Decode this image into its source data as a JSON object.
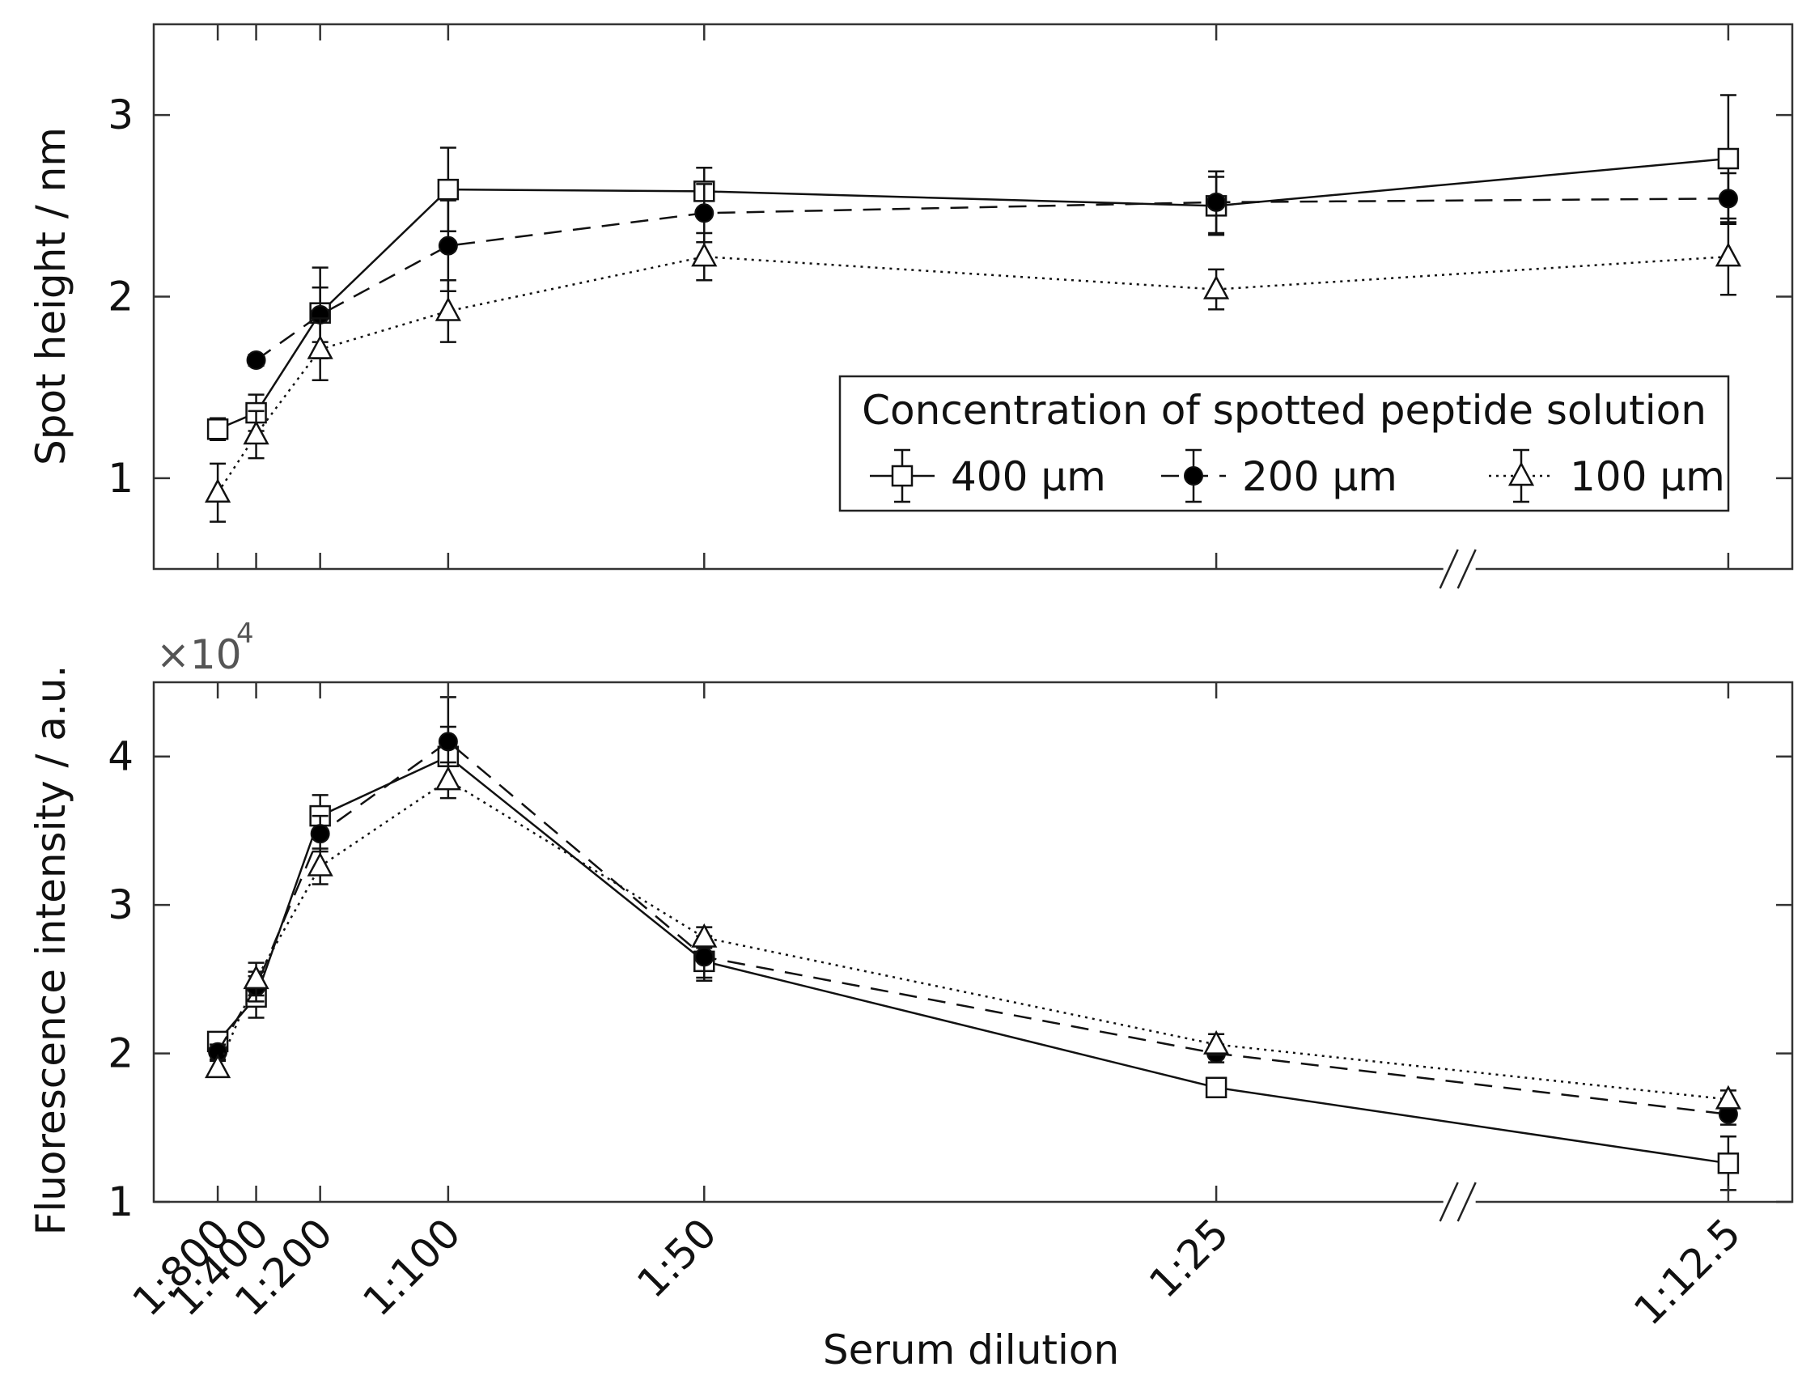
{
  "figure": {
    "xlabel": "Serum dilution",
    "break_marker": "//"
  },
  "styles": {
    "400": {
      "dash": "",
      "marker": "square",
      "fill": "#ffffff"
    },
    "200": {
      "dash": "22 14",
      "marker": "circle",
      "fill": "#000000"
    },
    "100": {
      "dash": "3 6",
      "marker": "triangle",
      "fill": "#ffffff"
    }
  },
  "chart_data": [
    {
      "type": "line",
      "id": "top",
      "title": "",
      "ylabel": "Spot height / nm",
      "xlabel": "",
      "ylim": [
        0.5,
        3.5
      ],
      "yticks": [
        1,
        2,
        3
      ],
      "categories": [
        "1:800",
        "1:400",
        "1:200",
        "1:100",
        "1:50",
        "1:25",
        "1:12.5"
      ],
      "x": [
        -3.0,
        -2.7,
        -2.2,
        -1.2,
        0.8,
        4.8,
        8.8
      ],
      "xlim": [
        -3.5,
        9.3
      ],
      "axis_break_x": 6.7,
      "grid": false,
      "legend": {
        "title": "Concentration of spotted peptide solution",
        "placement": "right-middle",
        "entries": [
          "400 μm",
          "200 μm",
          "100 μm"
        ]
      },
      "series": [
        {
          "name": "400 μm",
          "style": "400",
          "values": [
            1.27,
            1.36,
            1.91,
            2.59,
            2.58,
            2.5,
            2.76
          ],
          "errors": [
            0.06,
            0.1,
            0.25,
            0.23,
            0.13,
            0.16,
            0.35
          ]
        },
        {
          "name": "200 μm",
          "style": "200",
          "values": [
            null,
            1.65,
            1.9,
            2.28,
            2.46,
            2.52,
            2.54
          ],
          "errors": [
            null,
            0.03,
            0.15,
            0.25,
            0.16,
            0.17,
            0.14
          ]
        },
        {
          "name": "100 μm",
          "style": "100",
          "values": [
            0.92,
            1.24,
            1.71,
            1.92,
            2.22,
            2.04,
            2.22
          ],
          "errors": [
            0.16,
            0.13,
            0.17,
            0.17,
            0.13,
            0.11,
            0.21
          ]
        }
      ]
    },
    {
      "type": "line",
      "id": "bottom",
      "title": "",
      "ylabel": "Fluorescence intensity / a.u.",
      "xlabel": "Serum dilution",
      "ylim": [
        1,
        4.5
      ],
      "yticks": [
        1,
        2,
        3,
        4
      ],
      "multiplier": {
        "base": "×10",
        "exp": "4"
      },
      "categories": [
        "1:800",
        "1:400",
        "1:200",
        "1:100",
        "1:50",
        "1:25",
        "1:12.5"
      ],
      "x": [
        -3.0,
        -2.7,
        -2.2,
        -1.2,
        0.8,
        4.8,
        8.8
      ],
      "xlim": [
        -3.5,
        9.3
      ],
      "axis_break_x": 6.7,
      "grid": false,
      "series": [
        {
          "name": "400 μm",
          "style": "400",
          "values": [
            2.08,
            2.38,
            3.6,
            4.0,
            2.62,
            1.77,
            1.26
          ],
          "errors": [
            0.05,
            0.14,
            0.14,
            0.2,
            0.13,
            0.05,
            0.18
          ]
        },
        {
          "name": "200 μm",
          "style": "200",
          "values": [
            2.01,
            2.45,
            3.48,
            4.1,
            2.65,
            2.0,
            1.59
          ],
          "errors": [
            0.05,
            0.1,
            0.12,
            0.3,
            0.14,
            0.06,
            0.07
          ]
        },
        {
          "name": "100 μm",
          "style": "100",
          "values": [
            1.9,
            2.5,
            3.26,
            3.84,
            2.78,
            2.06,
            1.69
          ],
          "errors": [
            0.05,
            0.11,
            0.12,
            0.12,
            0.07,
            0.07,
            0.06
          ]
        }
      ]
    }
  ]
}
